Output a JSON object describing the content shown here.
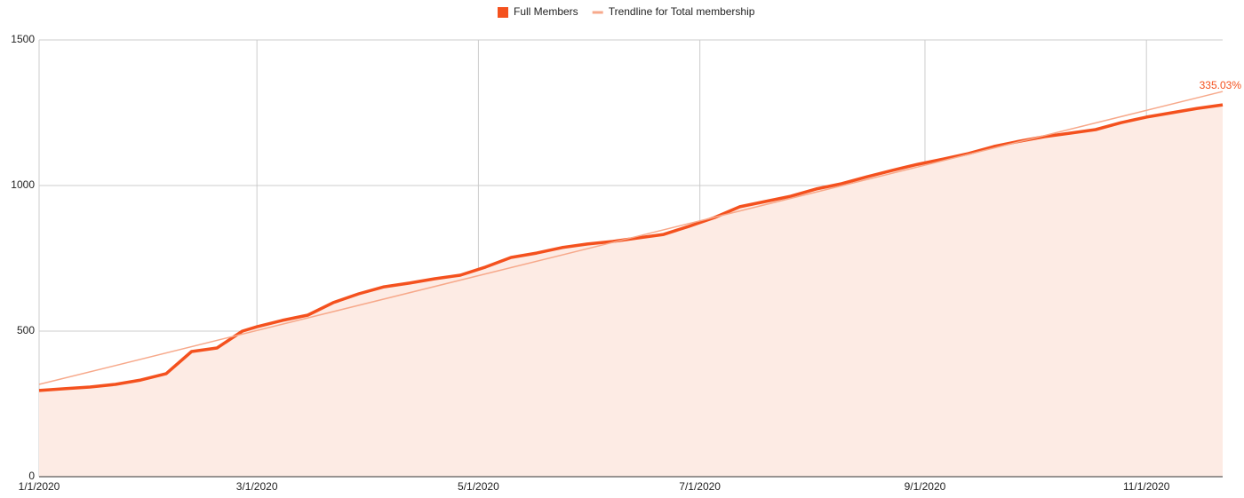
{
  "chart_data": {
    "type": "area",
    "annotation": "335.03%",
    "grid": true,
    "legend": "top",
    "area_color": "#fdebe4",
    "xlim": [
      "2020-01-01",
      "2020-11-22"
    ],
    "xticks": [
      {
        "value": "2020-01-01",
        "label": "1/1/2020"
      },
      {
        "value": "2020-03-01",
        "label": "3/1/2020"
      },
      {
        "value": "2020-05-01",
        "label": "5/1/2020"
      },
      {
        "value": "2020-07-01",
        "label": "7/1/2020"
      },
      {
        "value": "2020-09-01",
        "label": "9/1/2020"
      },
      {
        "value": "2020-11-01",
        "label": "11/1/2020"
      }
    ],
    "ylim": [
      0,
      1500
    ],
    "yticks": [
      0,
      500,
      1000,
      1500
    ],
    "series": [
      {
        "name": "Full Members",
        "color": "#f4511e",
        "legend_marker": "square",
        "x": [
          "2020-01-01",
          "2020-01-08",
          "2020-01-15",
          "2020-01-22",
          "2020-01-29",
          "2020-02-05",
          "2020-02-12",
          "2020-02-19",
          "2020-02-26",
          "2020-03-01",
          "2020-03-08",
          "2020-03-15",
          "2020-03-22",
          "2020-03-29",
          "2020-04-05",
          "2020-04-12",
          "2020-04-19",
          "2020-04-26",
          "2020-05-03",
          "2020-05-10",
          "2020-05-17",
          "2020-05-24",
          "2020-05-31",
          "2020-06-07",
          "2020-06-14",
          "2020-06-21",
          "2020-06-28",
          "2020-07-05",
          "2020-07-12",
          "2020-07-19",
          "2020-07-26",
          "2020-08-02",
          "2020-08-09",
          "2020-08-16",
          "2020-08-23",
          "2020-08-30",
          "2020-09-06",
          "2020-09-13",
          "2020-09-20",
          "2020-09-27",
          "2020-10-04",
          "2020-10-11",
          "2020-10-18",
          "2020-10-25",
          "2020-11-01",
          "2020-11-08",
          "2020-11-15",
          "2020-11-22"
        ],
        "values": [
          296,
          302,
          308,
          317,
          332,
          354,
          430,
          442,
          500,
          515,
          537,
          555,
          598,
          628,
          652,
          665,
          680,
          692,
          720,
          753,
          768,
          787,
          799,
          808,
          820,
          832,
          860,
          890,
          927,
          945,
          963,
          988,
          1006,
          1030,
          1052,
          1073,
          1091,
          1110,
          1134,
          1152,
          1168,
          1180,
          1192,
          1216,
          1235,
          1250,
          1265,
          1277
        ]
      },
      {
        "name": "Trendline for Total membership",
        "color": "#f7a98b",
        "legend_marker": "line",
        "x": [
          "2020-01-01",
          "2020-11-22"
        ],
        "values": [
          317,
          1323
        ]
      }
    ]
  }
}
